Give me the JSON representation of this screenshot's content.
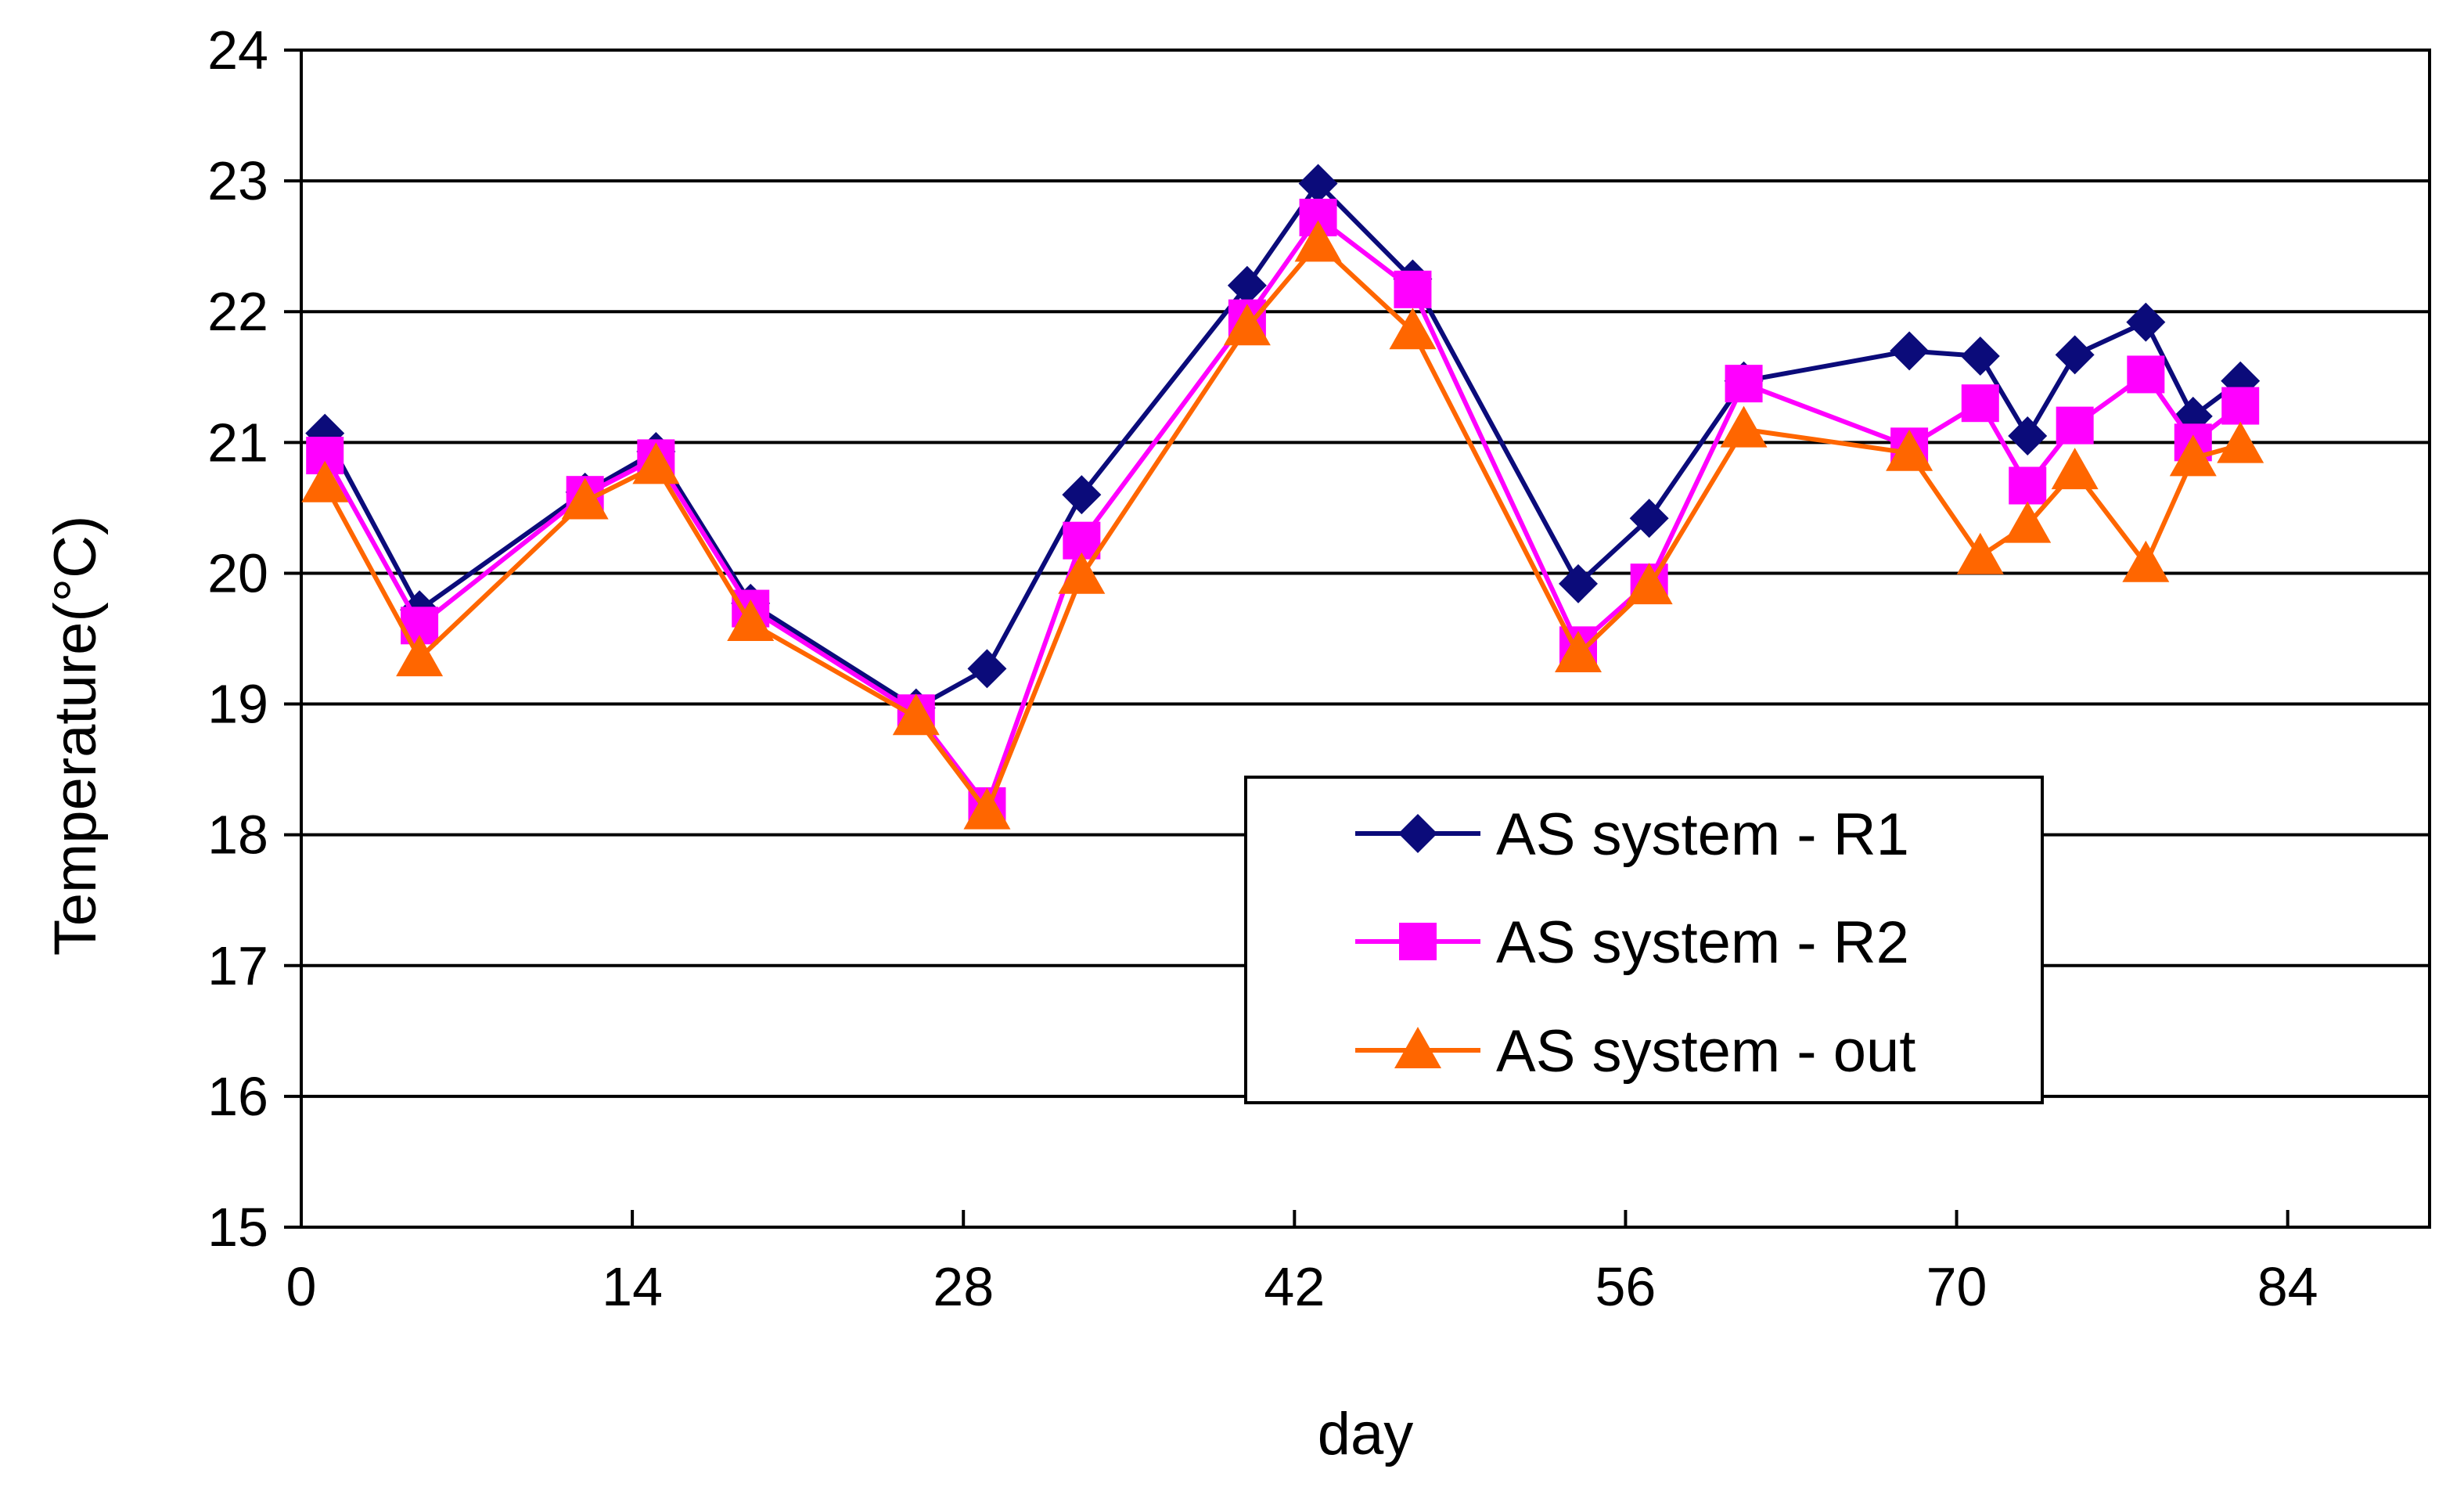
{
  "chart_data": {
    "type": "line",
    "title": "",
    "xlabel": "day",
    "ylabel": "Temperature(°C)",
    "xlim": [
      0,
      90
    ],
    "ylim": [
      15,
      24
    ],
    "xticks": [
      0,
      14,
      28,
      42,
      56,
      70,
      84
    ],
    "yticks": [
      15,
      16,
      17,
      18,
      19,
      20,
      21,
      22,
      23,
      24
    ],
    "grid": "horizontal",
    "legend_position": "lower-right",
    "series": [
      {
        "name": "AS system - R1",
        "color": "#0B0B7A",
        "marker": "diamond",
        "points": [
          [
            1,
            21.07
          ],
          [
            5,
            19.72
          ],
          [
            12,
            20.62
          ],
          [
            15,
            20.93
          ],
          [
            19,
            19.77
          ],
          [
            26,
            18.97
          ],
          [
            29,
            19.27
          ],
          [
            33,
            20.6
          ],
          [
            40,
            22.2
          ],
          [
            43,
            22.98
          ],
          [
            47,
            22.25
          ],
          [
            54,
            19.92
          ],
          [
            57,
            20.42
          ],
          [
            61,
            21.47
          ],
          [
            68,
            21.7
          ],
          [
            71,
            21.66
          ],
          [
            73,
            21.05
          ],
          [
            75,
            21.67
          ],
          [
            78,
            21.92
          ],
          [
            80,
            21.2
          ],
          [
            82,
            21.47
          ]
        ]
      },
      {
        "name": "AS system - R2",
        "color": "#FF00FF",
        "marker": "square",
        "points": [
          [
            1,
            20.9
          ],
          [
            5,
            19.6
          ],
          [
            12,
            20.6
          ],
          [
            15,
            20.88
          ],
          [
            19,
            19.73
          ],
          [
            26,
            18.93
          ],
          [
            29,
            18.22
          ],
          [
            33,
            20.25
          ],
          [
            40,
            21.95
          ],
          [
            43,
            22.72
          ],
          [
            47,
            22.17
          ],
          [
            54,
            19.45
          ],
          [
            57,
            19.93
          ],
          [
            61,
            21.45
          ],
          [
            68,
            20.97
          ],
          [
            71,
            21.3
          ],
          [
            73,
            20.67
          ],
          [
            75,
            21.13
          ],
          [
            78,
            21.52
          ],
          [
            80,
            21.0
          ],
          [
            82,
            21.28
          ]
        ]
      },
      {
        "name": "AS system - out",
        "color": "#FF6600",
        "marker": "triangle",
        "points": [
          [
            1,
            20.68
          ],
          [
            5,
            19.35
          ],
          [
            12,
            20.55
          ],
          [
            15,
            20.82
          ],
          [
            19,
            19.62
          ],
          [
            26,
            18.9
          ],
          [
            29,
            18.18
          ],
          [
            33,
            19.98
          ],
          [
            40,
            21.88
          ],
          [
            43,
            22.52
          ],
          [
            47,
            21.85
          ],
          [
            54,
            19.38
          ],
          [
            57,
            19.9
          ],
          [
            61,
            21.1
          ],
          [
            68,
            20.92
          ],
          [
            71,
            20.13
          ],
          [
            73,
            20.37
          ],
          [
            75,
            20.78
          ],
          [
            78,
            20.07
          ],
          [
            80,
            20.88
          ],
          [
            82,
            20.98
          ]
        ]
      }
    ]
  }
}
